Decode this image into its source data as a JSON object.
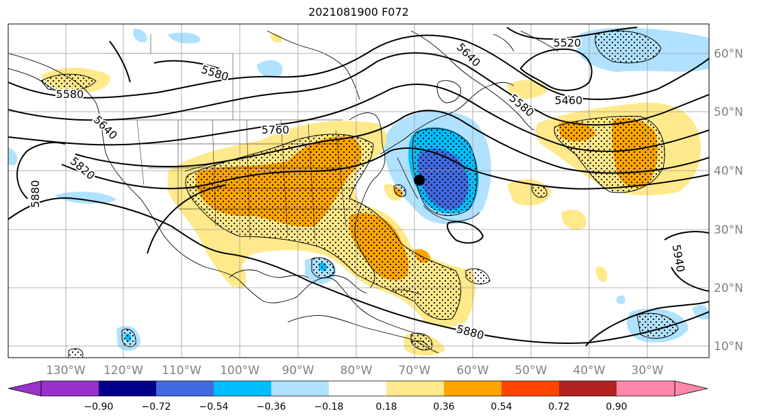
{
  "title": "2021081900 F072",
  "map": {
    "lon_labels": [
      "130°W",
      "120°W",
      "110°W",
      "100°W",
      "90°W",
      "80°W",
      "70°W",
      "60°W",
      "50°W",
      "40°W",
      "30°W"
    ],
    "lat_labels": [
      "60°N",
      "50°N",
      "40°N",
      "30°N",
      "20°N",
      "10°N"
    ],
    "contour_labels": [
      "5520",
      "5460",
      "5580",
      "5640",
      "5580",
      "5760",
      "5580",
      "5640",
      "5820",
      "5880",
      "5880",
      "5940"
    ],
    "colors": {
      "ocean": "#ffffff",
      "land_outline": "#000000",
      "grid": "#9a9a9a",
      "pos_018": "#ffe98a",
      "pos_036": "#ffa500",
      "neg_018": "#b0e2ff",
      "neg_036": "#00bfff",
      "neg_054": "#4169e1"
    },
    "marker": "storm-center"
  },
  "colorbar": {
    "ticks": [
      "−0.90",
      "−0.72",
      "−0.54",
      "−0.36",
      "−0.18",
      "0.18",
      "0.36",
      "0.54",
      "0.72",
      "0.90"
    ],
    "colors": [
      "#9932cc",
      "#00008b",
      "#4169e1",
      "#00bfff",
      "#b0e2ff",
      "#ffffff",
      "#ffe98a",
      "#ffa500",
      "#ff4500",
      "#b22222",
      "#ff88aa"
    ]
  }
}
